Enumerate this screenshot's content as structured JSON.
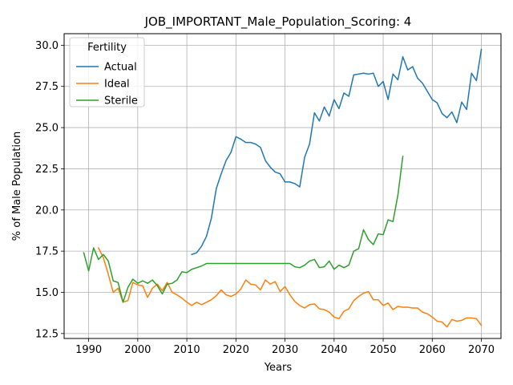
{
  "chart_data": {
    "type": "line",
    "title": "JOB_IMPORTANT_Male_Population_Scoring: 4",
    "xlabel": "Years",
    "ylabel": "% of Male Population",
    "xlim": [
      1985,
      2074
    ],
    "ylim": [
      12.2,
      30.7
    ],
    "x_ticks": [
      1990,
      2000,
      2010,
      2020,
      2030,
      2040,
      2050,
      2060,
      2070
    ],
    "y_ticks": [
      12.5,
      15.0,
      17.5,
      20.0,
      22.5,
      25.0,
      27.5,
      30.0
    ],
    "y_tick_labels": [
      "12.5",
      "15.0",
      "17.5",
      "20.0",
      "22.5",
      "25.0",
      "27.5",
      "30.0"
    ],
    "grid": true,
    "legend": {
      "title": "Fertility",
      "position": "top-left"
    },
    "series": [
      {
        "name": "Actual",
        "color": "#1f77b4",
        "x": [
          2011,
          2012,
          2013,
          2014,
          2015,
          2016,
          2017,
          2018,
          2019,
          2020,
          2021,
          2022,
          2023,
          2024,
          2025,
          2026,
          2027,
          2028,
          2029,
          2030,
          2031,
          2032,
          2033,
          2034,
          2035,
          2036,
          2037,
          2038,
          2039,
          2040,
          2041,
          2042,
          2043,
          2044,
          2045,
          2046,
          2047,
          2048,
          2049,
          2050,
          2051,
          2052,
          2053,
          2054,
          2055,
          2056,
          2057,
          2058,
          2059,
          2060,
          2061,
          2062,
          2063,
          2064,
          2065,
          2066,
          2067,
          2068,
          2069,
          2070
        ],
        "y": [
          17.3,
          17.4,
          17.8,
          18.4,
          19.5,
          21.3,
          22.2,
          23.0,
          23.5,
          24.45,
          24.3,
          24.1,
          24.1,
          24.0,
          23.8,
          23.0,
          22.6,
          22.3,
          22.2,
          21.7,
          21.7,
          21.6,
          21.4,
          23.2,
          24.0,
          25.9,
          25.4,
          26.25,
          25.7,
          26.7,
          26.15,
          27.1,
          26.9,
          28.2,
          28.25,
          28.3,
          28.25,
          28.3,
          27.5,
          27.8,
          26.7,
          28.25,
          27.9,
          29.3,
          28.5,
          28.7,
          28.0,
          27.7,
          27.2,
          26.7,
          26.5,
          25.85,
          25.6,
          25.95,
          25.3,
          26.55,
          26.1,
          28.3,
          27.85,
          29.75
        ]
      },
      {
        "name": "Ideal",
        "color": "#ff7f0e",
        "x": [
          1992,
          1993,
          1994,
          1995,
          1996,
          1997,
          1998,
          1999,
          2000,
          2001,
          2002,
          2003,
          2004,
          2005,
          2006,
          2007,
          2008,
          2009,
          2010,
          2011,
          2012,
          2013,
          2014,
          2015,
          2016,
          2017,
          2018,
          2019,
          2020,
          2021,
          2022,
          2023,
          2024,
          2025,
          2026,
          2027,
          2028,
          2029,
          2030,
          2031,
          2032,
          2033,
          2034,
          2035,
          2036,
          2037,
          2038,
          2039,
          2040,
          2041,
          2042,
          2043,
          2044,
          2045,
          2046,
          2047,
          2048,
          2049,
          2050,
          2051,
          2052,
          2053,
          2054,
          2055,
          2056,
          2057,
          2058,
          2059,
          2060,
          2061,
          2062,
          2063,
          2064,
          2065,
          2066,
          2067,
          2068,
          2069,
          2070
        ],
        "y": [
          17.7,
          17.1,
          16.1,
          15.0,
          15.25,
          14.4,
          14.5,
          15.6,
          15.45,
          15.4,
          14.7,
          15.25,
          15.5,
          15.1,
          15.6,
          15.0,
          14.85,
          14.65,
          14.4,
          14.2,
          14.4,
          14.25,
          14.4,
          14.55,
          14.8,
          15.15,
          14.85,
          14.75,
          14.9,
          15.2,
          15.75,
          15.5,
          15.45,
          15.15,
          15.75,
          15.5,
          15.65,
          15.05,
          15.35,
          14.85,
          14.45,
          14.2,
          14.05,
          14.25,
          14.3,
          14.0,
          13.95,
          13.8,
          13.5,
          13.4,
          13.85,
          14.0,
          14.5,
          14.75,
          14.95,
          15.05,
          14.55,
          14.55,
          14.2,
          14.35,
          13.95,
          14.15,
          14.1,
          14.1,
          14.05,
          14.05,
          13.8,
          13.7,
          13.5,
          13.25,
          13.2,
          12.9,
          13.35,
          13.25,
          13.3,
          13.45,
          13.45,
          13.4,
          13.0
        ]
      },
      {
        "name": "Sterile",
        "color": "#2ca02c",
        "x": [
          1989,
          1990,
          1991,
          1992,
          1993,
          1994,
          1995,
          1996,
          1997,
          1998,
          1999,
          2000,
          2001,
          2002,
          2003,
          2004,
          2005,
          2006,
          2007,
          2008,
          2009,
          2010,
          2011,
          2012,
          2013,
          2014,
          2015,
          2016,
          2017,
          2018,
          2019,
          2020,
          2021,
          2022,
          2023,
          2024,
          2025,
          2026,
          2027,
          2028,
          2029,
          2030,
          2031,
          2032,
          2033,
          2034,
          2035,
          2036,
          2037,
          2038,
          2039,
          2040,
          2041,
          2042,
          2043,
          2044,
          2045,
          2046,
          2047,
          2048,
          2049,
          2050,
          2051,
          2052,
          2053,
          2054
        ],
        "y": [
          17.4,
          16.3,
          17.7,
          17.0,
          17.3,
          16.9,
          15.7,
          15.6,
          14.4,
          15.3,
          15.8,
          15.55,
          15.7,
          15.55,
          15.75,
          15.4,
          14.9,
          15.5,
          15.55,
          15.75,
          16.25,
          16.2,
          16.4,
          16.5,
          16.6,
          16.75,
          16.75,
          16.75,
          16.75,
          16.75,
          16.75,
          16.75,
          16.75,
          16.75,
          16.75,
          16.75,
          16.75,
          16.75,
          16.75,
          16.75,
          16.75,
          16.75,
          16.75,
          16.55,
          16.5,
          16.65,
          16.9,
          17.0,
          16.5,
          16.55,
          16.9,
          16.4,
          16.65,
          16.5,
          16.65,
          17.5,
          17.65,
          18.8,
          18.2,
          17.9,
          18.55,
          18.5,
          19.4,
          19.3,
          20.9,
          23.25
        ]
      }
    ]
  }
}
